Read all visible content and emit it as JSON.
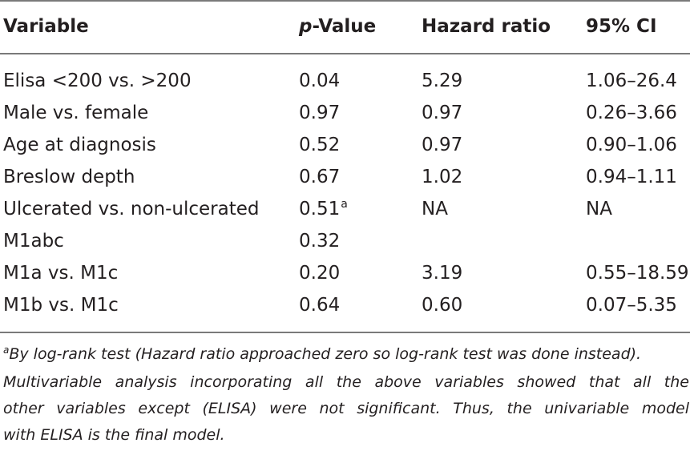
{
  "table": {
    "headers": {
      "variable": "Variable",
      "p_prefix": "p",
      "p_suffix": "-Value",
      "hazard": "Hazard ratio",
      "ci": "95% CI"
    },
    "rows": [
      {
        "variable": "Elisa <200 vs. >200",
        "p": "0.04",
        "p_mark": "",
        "hazard": "5.29",
        "ci": "1.06–26.4"
      },
      {
        "variable": "Male vs. female",
        "p": "0.97",
        "p_mark": "",
        "hazard": "0.97",
        "ci": "0.26–3.66"
      },
      {
        "variable": "Age at diagnosis",
        "p": "0.52",
        "p_mark": "",
        "hazard": "0.97",
        "ci": "0.90–1.06"
      },
      {
        "variable": "Breslow depth",
        "p": "0.67",
        "p_mark": "",
        "hazard": "1.02",
        "ci": "0.94–1.11"
      },
      {
        "variable": "Ulcerated vs. non-ulcerated",
        "p": "0.51",
        "p_mark": "a",
        "hazard": "NA",
        "ci": "NA"
      },
      {
        "variable": "M1abc",
        "p": "0.32",
        "p_mark": "",
        "hazard": "",
        "ci": ""
      },
      {
        "variable": "M1a vs. M1c",
        "p": "0.20",
        "p_mark": "",
        "hazard": "3.19",
        "ci": "0.55–18.59"
      },
      {
        "variable": "M1b vs. M1c",
        "p": "0.64",
        "p_mark": "",
        "hazard": "0.60",
        "ci": "0.07–5.35"
      }
    ]
  },
  "footnote": {
    "mark": "a",
    "line1": "By log-rank test (Hazard ratio approached zero so log-rank test was done instead).",
    "line2": "Multivariable analysis incorporating all the above variables showed that all the",
    "line3": "other variables except (ELISA) were not significant. Thus, the univariable model",
    "line4": "with ELISA is the final model."
  }
}
